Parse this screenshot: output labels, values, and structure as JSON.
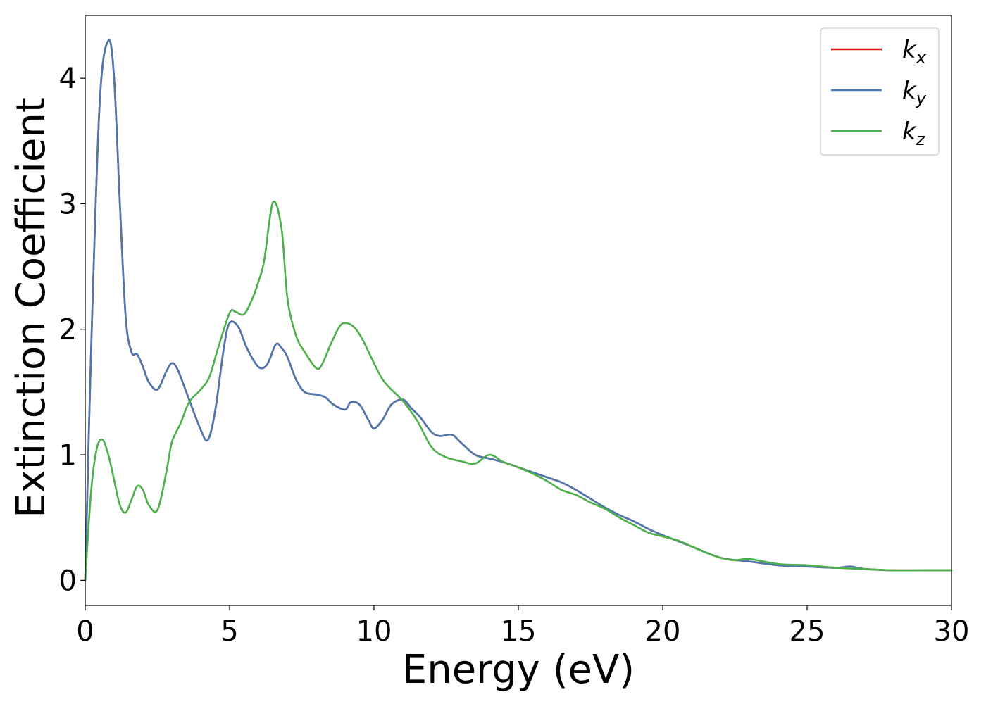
{
  "chart_data": {
    "type": "line",
    "title": "",
    "xlabel": "Energy (eV)",
    "ylabel": "Extinction Coefficient",
    "xlim": [
      0,
      30
    ],
    "ylim": [
      -0.2,
      4.5
    ],
    "xticks": [
      0,
      5,
      10,
      15,
      20,
      25,
      30
    ],
    "yticks": [
      0,
      1,
      2,
      3,
      4
    ],
    "grid": false,
    "legend_position": "top-right",
    "series": [
      {
        "name": "k_x",
        "legend_main": "k",
        "legend_sub": "x",
        "color": "#e41a1c",
        "x": [
          0,
          0.2,
          0.5,
          0.8,
          1.0,
          1.2,
          1.4,
          1.6,
          1.8,
          2.0,
          2.2,
          2.5,
          2.8,
          3.0,
          3.2,
          3.5,
          4.0,
          4.25,
          4.5,
          4.8,
          5.0,
          5.3,
          5.6,
          6.0,
          6.3,
          6.6,
          6.8,
          7.0,
          7.3,
          7.6,
          8.0,
          8.3,
          8.6,
          9.0,
          9.2,
          9.5,
          9.8,
          10.0,
          10.3,
          10.6,
          11.0,
          11.3,
          11.6,
          12.0,
          12.3,
          12.7,
          13.0,
          13.5,
          14.0,
          14.5,
          15.0,
          15.5,
          16.0,
          16.5,
          17.0,
          17.5,
          18.0,
          18.5,
          19.0,
          19.5,
          20.0,
          21.0,
          22.0,
          23.0,
          24.0,
          25.0,
          26.0,
          26.5,
          27.0,
          28.0,
          29.0,
          30.0
        ],
        "values": [
          0.0,
          1.8,
          3.8,
          4.3,
          4.0,
          3.0,
          2.1,
          1.82,
          1.8,
          1.7,
          1.58,
          1.52,
          1.66,
          1.73,
          1.68,
          1.5,
          1.2,
          1.12,
          1.35,
          1.85,
          2.05,
          2.02,
          1.85,
          1.7,
          1.72,
          1.88,
          1.85,
          1.78,
          1.6,
          1.5,
          1.48,
          1.46,
          1.4,
          1.36,
          1.42,
          1.4,
          1.28,
          1.21,
          1.28,
          1.4,
          1.44,
          1.37,
          1.3,
          1.18,
          1.15,
          1.16,
          1.1,
          1.0,
          0.97,
          0.94,
          0.9,
          0.86,
          0.82,
          0.78,
          0.72,
          0.65,
          0.58,
          0.52,
          0.47,
          0.41,
          0.36,
          0.27,
          0.18,
          0.15,
          0.12,
          0.11,
          0.1,
          0.11,
          0.09,
          0.08,
          0.08,
          0.08
        ]
      },
      {
        "name": "k_y",
        "legend_main": "k",
        "legend_sub": "y",
        "color": "#4a78b0",
        "x": [
          0,
          0.2,
          0.5,
          0.8,
          1.0,
          1.2,
          1.4,
          1.6,
          1.8,
          2.0,
          2.2,
          2.5,
          2.8,
          3.0,
          3.2,
          3.5,
          4.0,
          4.25,
          4.5,
          4.8,
          5.0,
          5.3,
          5.6,
          6.0,
          6.3,
          6.6,
          6.8,
          7.0,
          7.3,
          7.6,
          8.0,
          8.3,
          8.6,
          9.0,
          9.2,
          9.5,
          9.8,
          10.0,
          10.3,
          10.6,
          11.0,
          11.3,
          11.6,
          12.0,
          12.3,
          12.7,
          13.0,
          13.5,
          14.0,
          14.5,
          15.0,
          15.5,
          16.0,
          16.5,
          17.0,
          17.5,
          18.0,
          18.5,
          19.0,
          19.5,
          20.0,
          21.0,
          22.0,
          23.0,
          24.0,
          25.0,
          26.0,
          26.5,
          27.0,
          28.0,
          29.0,
          30.0
        ],
        "values": [
          0.0,
          1.8,
          3.8,
          4.3,
          4.0,
          3.0,
          2.1,
          1.82,
          1.8,
          1.7,
          1.58,
          1.52,
          1.66,
          1.73,
          1.68,
          1.5,
          1.2,
          1.12,
          1.35,
          1.85,
          2.05,
          2.02,
          1.85,
          1.7,
          1.72,
          1.88,
          1.85,
          1.78,
          1.6,
          1.5,
          1.48,
          1.46,
          1.4,
          1.36,
          1.42,
          1.4,
          1.28,
          1.21,
          1.28,
          1.4,
          1.44,
          1.37,
          1.3,
          1.18,
          1.15,
          1.16,
          1.1,
          1.0,
          0.97,
          0.94,
          0.9,
          0.86,
          0.82,
          0.78,
          0.72,
          0.65,
          0.58,
          0.52,
          0.47,
          0.41,
          0.36,
          0.27,
          0.18,
          0.15,
          0.12,
          0.11,
          0.1,
          0.11,
          0.09,
          0.08,
          0.08,
          0.08
        ]
      },
      {
        "name": "k_z",
        "legend_main": "k",
        "legend_sub": "z",
        "color": "#4daf4a",
        "x": [
          0,
          0.2,
          0.4,
          0.6,
          0.8,
          1.0,
          1.2,
          1.4,
          1.6,
          1.8,
          2.0,
          2.2,
          2.5,
          2.8,
          3.0,
          3.3,
          3.6,
          4.0,
          4.3,
          4.6,
          5.0,
          5.2,
          5.5,
          5.8,
          6.0,
          6.2,
          6.5,
          6.8,
          7.0,
          7.3,
          7.6,
          8.0,
          8.2,
          8.5,
          8.8,
          9.0,
          9.3,
          9.6,
          10.0,
          10.3,
          10.6,
          11.0,
          11.5,
          12.0,
          12.5,
          13.0,
          13.5,
          14.0,
          14.5,
          15.0,
          15.5,
          16.0,
          16.5,
          17.0,
          17.5,
          18.0,
          18.5,
          19.0,
          19.5,
          20.0,
          20.5,
          21.0,
          21.5,
          22.0,
          22.5,
          23.0,
          24.0,
          25.0,
          26.0,
          27.0,
          28.0,
          29.0,
          30.0
        ],
        "values": [
          0.0,
          0.7,
          1.05,
          1.12,
          1.0,
          0.8,
          0.6,
          0.54,
          0.64,
          0.75,
          0.72,
          0.6,
          0.56,
          0.85,
          1.1,
          1.25,
          1.42,
          1.52,
          1.62,
          1.85,
          2.13,
          2.14,
          2.12,
          2.25,
          2.38,
          2.55,
          3.01,
          2.8,
          2.25,
          1.95,
          1.82,
          1.69,
          1.72,
          1.88,
          2.02,
          2.05,
          2.02,
          1.92,
          1.73,
          1.6,
          1.52,
          1.43,
          1.27,
          1.06,
          0.98,
          0.95,
          0.93,
          1.0,
          0.94,
          0.9,
          0.85,
          0.79,
          0.72,
          0.68,
          0.62,
          0.57,
          0.5,
          0.44,
          0.38,
          0.35,
          0.32,
          0.27,
          0.22,
          0.18,
          0.16,
          0.17,
          0.13,
          0.12,
          0.1,
          0.09,
          0.08,
          0.08,
          0.08
        ]
      }
    ]
  }
}
